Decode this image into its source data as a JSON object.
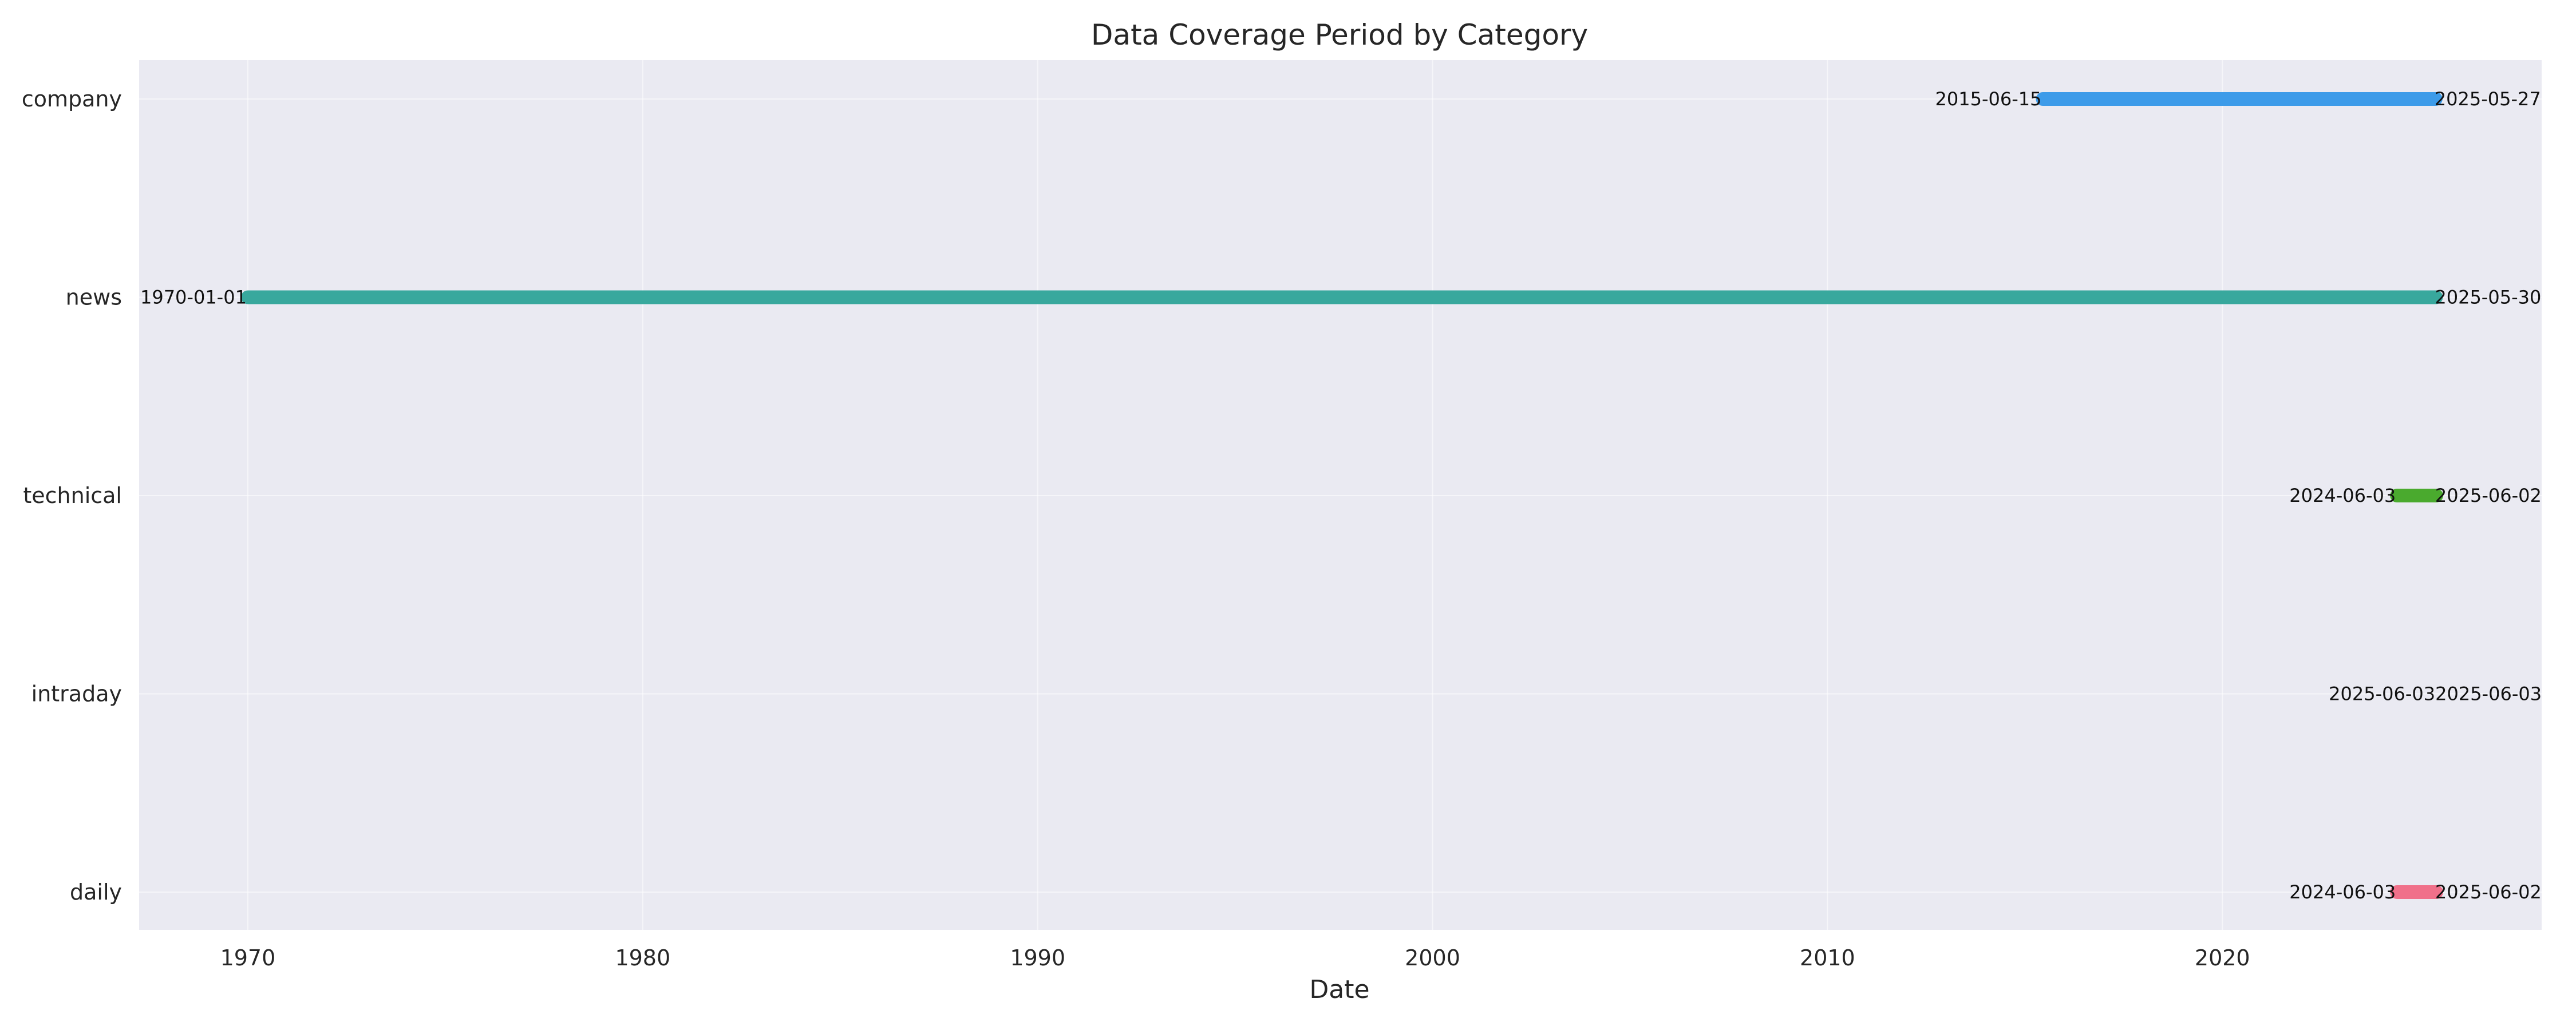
{
  "chart_data": {
    "type": "timeline",
    "title": "Data Coverage Period by Category",
    "xlabel": "Date",
    "ylabel": "",
    "x_ticks": [
      "1970",
      "1980",
      "1990",
      "2000",
      "2010",
      "2020"
    ],
    "xlim": [
      "1967-04-01",
      "2028-02-01"
    ],
    "grid": true,
    "series": [
      {
        "category": "company",
        "start": "2015-06-15",
        "end": "2025-05-27",
        "color": "#3d9be9"
      },
      {
        "category": "news",
        "start": "1970-01-01",
        "end": "2025-05-30",
        "color": "#38a89d"
      },
      {
        "category": "technical",
        "start": "2024-06-03",
        "end": "2025-06-02",
        "color": "#4aaa2e"
      },
      {
        "category": "intraday",
        "start": "2025-06-03",
        "end": "2025-06-03",
        "color": "#9b59b6"
      },
      {
        "category": "daily",
        "start": "2024-06-03",
        "end": "2025-06-02",
        "color": "#f0708a"
      }
    ]
  }
}
